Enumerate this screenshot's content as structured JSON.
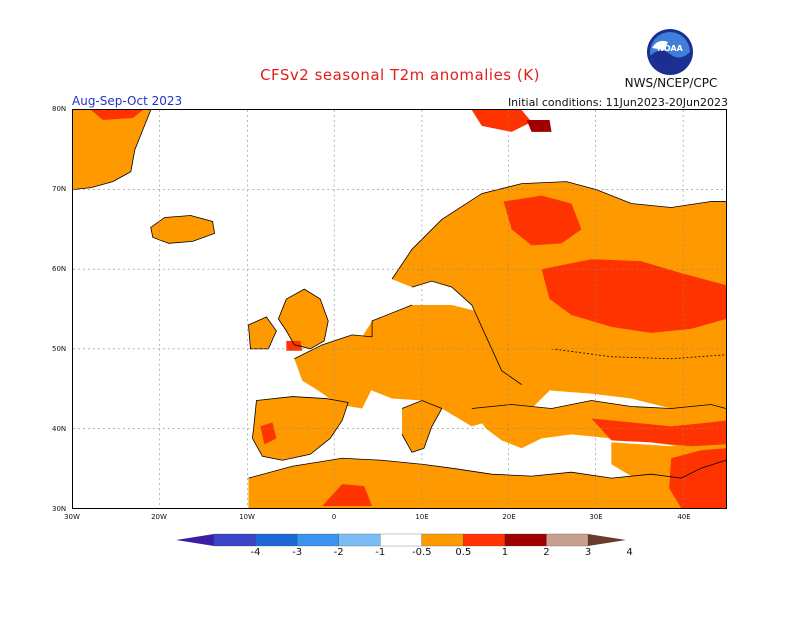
{
  "header": {
    "title": "CFSv2  seasonal  T2m  anomalies  (K)",
    "season": "Aug-Sep-Oct 2023",
    "initial_conditions": "Initial conditions:  11Jun2023-20Jun2023",
    "agency": "NWS/NCEP/CPC"
  },
  "map": {
    "lat_labels": [
      "80N",
      "70N",
      "60N",
      "50N",
      "40N",
      "30N"
    ],
    "lon_labels": [
      "30W",
      "20W",
      "10W",
      "0",
      "10E",
      "20E",
      "30E",
      "40E"
    ],
    "land_color": "#ffffff",
    "ocean_color": "#ffffff"
  },
  "colorbar": {
    "labels": [
      "-4",
      "-3",
      "-2",
      "-1",
      "-0.5",
      "0.5",
      "1",
      "2",
      "3",
      "4"
    ],
    "colors": [
      "#3a1fa6",
      "#3b45c8",
      "#1c69d6",
      "#3b93f0",
      "#7cbcf6",
      "#ffffff",
      "#ff9900",
      "#ff3300",
      "#a00000",
      "#c8a090",
      "#6b3a2a"
    ]
  }
}
